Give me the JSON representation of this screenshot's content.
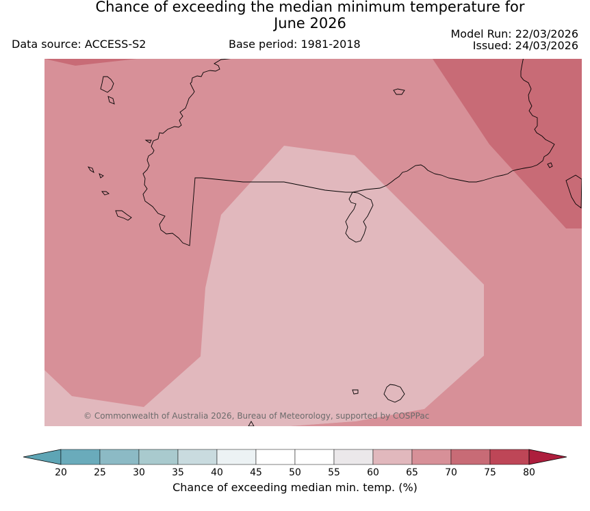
{
  "header": {
    "title_line1": "Chance of exceeding the median minimum temperature for",
    "title_line2": "June 2026",
    "data_source": "Data source: ACCESS-S2",
    "base_period": "Base period: 1981-2018",
    "model_run": "Model Run: 22/03/2026",
    "issued": "Issued: 24/03/2026"
  },
  "map": {
    "credit": "© Commonwealth of Australia 2026, Bureau of Meteorology, supported by COSPPac",
    "regions": [
      {
        "name": "60-65%",
        "color": "#e1b8bd"
      },
      {
        "name": "65-70%",
        "color": "#d79098"
      },
      {
        "name": "70-75%",
        "color": "#c86b76"
      }
    ]
  },
  "colorbar": {
    "label": "Chance of exceeding median min. temp. (%)",
    "ticks": [
      "20",
      "25",
      "30",
      "35",
      "40",
      "45",
      "50",
      "55",
      "60",
      "65",
      "70",
      "75",
      "80"
    ],
    "colors": [
      "#5ea5b5",
      "#6aabbb",
      "#8cbac5",
      "#a9cace",
      "#c9dbdf",
      "#ecf2f4",
      "#ffffff",
      "#ffffff",
      "#ebe8ea",
      "#e1b8bd",
      "#d79098",
      "#c86b76",
      "#be4657",
      "#ad1e3d"
    ]
  }
}
